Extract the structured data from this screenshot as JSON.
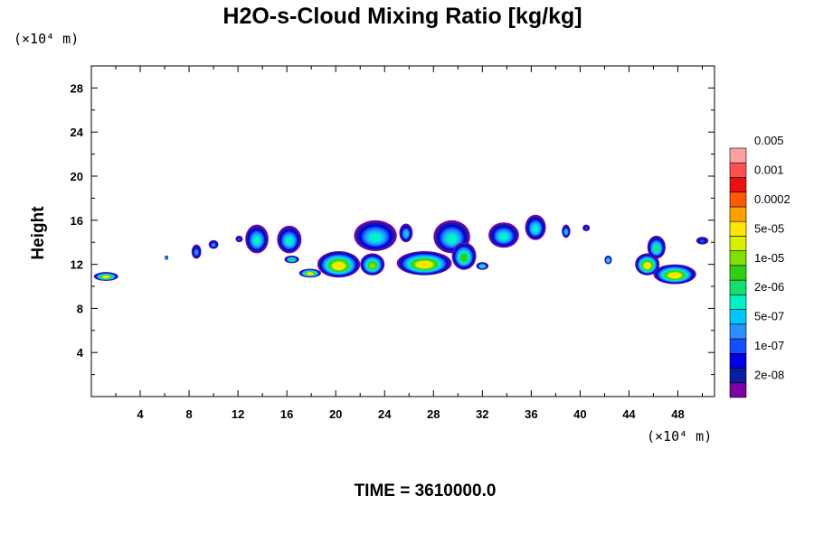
{
  "chart_data": {
    "type": "heatmap",
    "title": "H2O-s-Cloud Mixing Ratio [kg/kg]",
    "xlabel": "",
    "ylabel": "Height",
    "x_unit": "(×10⁴ m)",
    "y_unit": "(×10⁴ m)",
    "xlim": [
      0,
      51
    ],
    "ylim": [
      0,
      30
    ],
    "x_ticks": [
      4,
      8,
      12,
      16,
      20,
      24,
      28,
      32,
      36,
      40,
      44,
      48
    ],
    "y_ticks": [
      4,
      8,
      12,
      16,
      20,
      24,
      28
    ],
    "grid": false,
    "colorbar": {
      "placement": "right",
      "colors": [
        "#7a00a8",
        "#0a1ea0",
        "#0000e6",
        "#1450ff",
        "#2a90ff",
        "#00c8ff",
        "#00f0c8",
        "#10e070",
        "#30d010",
        "#80e000",
        "#d8f000",
        "#ffe600",
        "#ffa000",
        "#ff5a00",
        "#ee1010",
        "#ff5050",
        "#ffa0a0"
      ],
      "labels": [
        "2e-08",
        "1e-07",
        "5e-07",
        "2e-06",
        "1e-05",
        "5e-05",
        "0.0002",
        "0.001",
        "0.005"
      ]
    },
    "cloud_patches": [
      {
        "x": [
          0.2,
          2.2
        ],
        "y": [
          10.5,
          11.3
        ],
        "peak": 11
      },
      {
        "x": [
          6.0,
          6.3
        ],
        "y": [
          12.4,
          12.8
        ],
        "peak": 6
      },
      {
        "x": [
          8.2,
          9.0
        ],
        "y": [
          12.5,
          13.8
        ],
        "peak": 4
      },
      {
        "x": [
          9.6,
          10.4
        ],
        "y": [
          13.4,
          14.2
        ],
        "peak": 4
      },
      {
        "x": [
          11.8,
          12.4
        ],
        "y": [
          14.0,
          14.6
        ],
        "peak": 3
      },
      {
        "x": [
          12.6,
          14.5
        ],
        "y": [
          13.0,
          15.6
        ],
        "peak": 6
      },
      {
        "x": [
          15.2,
          17.2
        ],
        "y": [
          13.0,
          15.5
        ],
        "peak": 6
      },
      {
        "x": [
          15.8,
          17.0
        ],
        "y": [
          12.1,
          12.8
        ],
        "peak": 8
      },
      {
        "x": [
          17.0,
          18.8
        ],
        "y": [
          10.8,
          11.6
        ],
        "peak": 11
      },
      {
        "x": [
          18.5,
          22.0
        ],
        "y": [
          10.8,
          13.2
        ],
        "peak": 11
      },
      {
        "x": [
          21.5,
          25.0
        ],
        "y": [
          13.2,
          16.0
        ],
        "peak": 6
      },
      {
        "x": [
          22.0,
          24.0
        ],
        "y": [
          11.0,
          13.0
        ],
        "peak": 9
      },
      {
        "x": [
          25.2,
          26.3
        ],
        "y": [
          14.0,
          15.7
        ],
        "peak": 5
      },
      {
        "x": [
          25.0,
          29.5
        ],
        "y": [
          11.0,
          13.2
        ],
        "peak": 11
      },
      {
        "x": [
          28.0,
          31.0
        ],
        "y": [
          13.0,
          16.0
        ],
        "peak": 6
      },
      {
        "x": [
          29.5,
          31.5
        ],
        "y": [
          11.5,
          14.0
        ],
        "peak": 8
      },
      {
        "x": [
          31.5,
          32.5
        ],
        "y": [
          11.5,
          12.2
        ],
        "peak": 7
      },
      {
        "x": [
          32.5,
          35.0
        ],
        "y": [
          13.5,
          15.8
        ],
        "peak": 6
      },
      {
        "x": [
          35.5,
          37.2
        ],
        "y": [
          14.2,
          16.5
        ],
        "peak": 6
      },
      {
        "x": [
          38.5,
          39.2
        ],
        "y": [
          14.4,
          15.6
        ],
        "peak": 5
      },
      {
        "x": [
          40.2,
          40.8
        ],
        "y": [
          15.0,
          15.6
        ],
        "peak": 3
      },
      {
        "x": [
          42.0,
          42.6
        ],
        "y": [
          12.0,
          12.8
        ],
        "peak": 7
      },
      {
        "x": [
          44.5,
          46.5
        ],
        "y": [
          11.0,
          13.0
        ],
        "peak": 11
      },
      {
        "x": [
          45.5,
          47.0
        ],
        "y": [
          12.5,
          14.6
        ],
        "peak": 7
      },
      {
        "x": [
          46.0,
          49.5
        ],
        "y": [
          10.2,
          12.0
        ],
        "peak": 11
      },
      {
        "x": [
          49.5,
          50.5
        ],
        "y": [
          13.8,
          14.5
        ],
        "peak": 3
      }
    ]
  },
  "time_label": "TIME = 3610000.0"
}
